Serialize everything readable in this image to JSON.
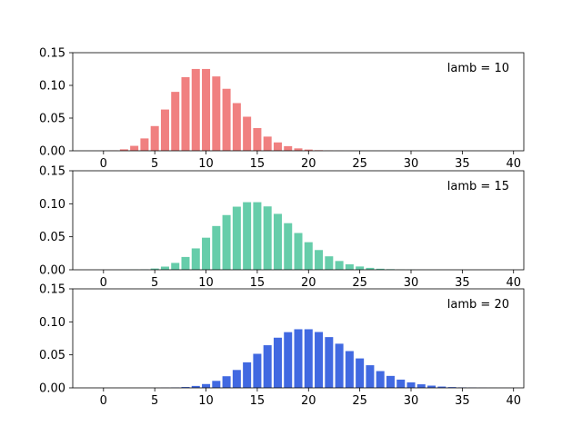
{
  "chart_data": [
    {
      "type": "bar",
      "annotation": "lamb = 10",
      "color": "#F08080",
      "grid": false,
      "xlim": [
        -3,
        41
      ],
      "ylim": [
        0,
        0.15
      ],
      "xticks": [
        0,
        5,
        10,
        15,
        20,
        25,
        30,
        35,
        40
      ],
      "yticks": [
        "0.00",
        "0.05",
        "0.10",
        "0.15"
      ],
      "x": [
        0,
        1,
        2,
        3,
        4,
        5,
        6,
        7,
        8,
        9,
        10,
        11,
        12,
        13,
        14,
        15,
        16,
        17,
        18,
        19,
        20,
        21,
        22,
        23,
        24,
        25,
        26,
        27,
        28,
        29,
        30,
        31,
        32,
        33,
        34,
        35,
        36,
        37,
        38,
        39,
        40
      ],
      "values": [
        4.54e-05,
        0.000454,
        0.00227,
        0.00757,
        0.0189,
        0.0378,
        0.0631,
        0.0901,
        0.1126,
        0.1251,
        0.1251,
        0.1137,
        0.0948,
        0.0729,
        0.0521,
        0.0347,
        0.0217,
        0.0128,
        0.0071,
        0.0037,
        0.0019,
        0.0009,
        0.0004,
        0.0002,
        0.0001,
        0,
        0,
        0,
        0,
        0,
        0,
        0,
        0,
        0,
        0,
        0,
        0,
        0,
        0,
        0,
        0
      ]
    },
    {
      "type": "bar",
      "annotation": "lamb = 15",
      "color": "#66CDAA",
      "grid": false,
      "xlim": [
        -3,
        41
      ],
      "ylim": [
        0,
        0.15
      ],
      "xticks": [
        0,
        5,
        10,
        15,
        20,
        25,
        30,
        35,
        40
      ],
      "yticks": [
        "0.00",
        "0.05",
        "0.10",
        "0.15"
      ],
      "x": [
        0,
        1,
        2,
        3,
        4,
        5,
        6,
        7,
        8,
        9,
        10,
        11,
        12,
        13,
        14,
        15,
        16,
        17,
        18,
        19,
        20,
        21,
        22,
        23,
        24,
        25,
        26,
        27,
        28,
        29,
        30,
        31,
        32,
        33,
        34,
        35,
        36,
        37,
        38,
        39,
        40
      ],
      "values": [
        0,
        5e-06,
        3e-05,
        0.0002,
        0.0006,
        0.0019,
        0.0048,
        0.0104,
        0.0194,
        0.0324,
        0.0486,
        0.0663,
        0.0829,
        0.0956,
        0.1024,
        0.1024,
        0.096,
        0.0847,
        0.0706,
        0.0557,
        0.0418,
        0.0299,
        0.0204,
        0.0133,
        0.0083,
        0.005,
        0.0029,
        0.0016,
        0.0009,
        0.0004,
        0.0002,
        0.0001,
        5e-05,
        0,
        0,
        0,
        0,
        0,
        0,
        0,
        0
      ]
    },
    {
      "type": "bar",
      "annotation": "lamb = 20",
      "color": "#4169E1",
      "grid": false,
      "xlim": [
        -3,
        41
      ],
      "ylim": [
        0,
        0.15
      ],
      "xticks": [
        0,
        5,
        10,
        15,
        20,
        25,
        30,
        35,
        40
      ],
      "yticks": [
        "0.00",
        "0.05",
        "0.10",
        "0.15"
      ],
      "x": [
        0,
        1,
        2,
        3,
        4,
        5,
        6,
        7,
        8,
        9,
        10,
        11,
        12,
        13,
        14,
        15,
        16,
        17,
        18,
        19,
        20,
        21,
        22,
        23,
        24,
        25,
        26,
        27,
        28,
        29,
        30,
        31,
        32,
        33,
        34,
        35,
        36,
        37,
        38,
        39,
        40
      ],
      "values": [
        0,
        0,
        0,
        0,
        1e-05,
        5e-05,
        0.0002,
        0.0005,
        0.0013,
        0.0029,
        0.0058,
        0.0106,
        0.0176,
        0.0271,
        0.0387,
        0.0516,
        0.0646,
        0.076,
        0.0844,
        0.0888,
        0.0888,
        0.0846,
        0.0769,
        0.0669,
        0.0557,
        0.0446,
        0.0343,
        0.0254,
        0.0181,
        0.0125,
        0.0083,
        0.0054,
        0.0034,
        0.002,
        0.0012,
        0.0007,
        0.0004,
        0.0002,
        0.0001,
        5e-05,
        3e-05
      ]
    }
  ]
}
